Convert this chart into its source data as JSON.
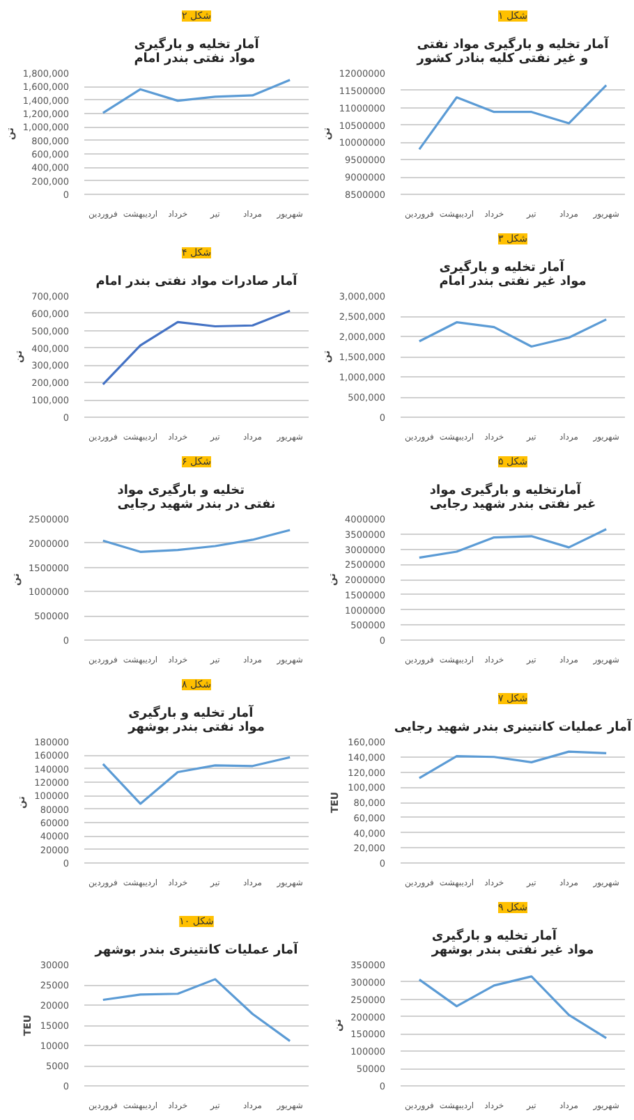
{
  "chart_data": [
    {
      "type": "line",
      "subtitle": "شکل ۱",
      "title": "آمار تخلیه و بارگیری مواد نفتی و غیر نفتی کلیه بنادر کشور",
      "ylabel": "تن",
      "categories": [
        "فروردین",
        "اردیبهشت",
        "خرداد",
        "تیر",
        "مرداد",
        "شهریور"
      ],
      "values": [
        9800000,
        11300000,
        10880000,
        10880000,
        10550000,
        11650000
      ],
      "color": "#5b9bd5",
      "ylim": [
        8500000,
        12000000
      ],
      "yticks": [
        8500000,
        9000000,
        9500000,
        10000000,
        10500000,
        11000000,
        11500000,
        12000000
      ],
      "grid": "y"
    },
    {
      "type": "line",
      "subtitle": "شکل ۲",
      "title": "آمار تخلیه و بارگیری مواد نفتی بندر امام",
      "ylabel": "تن",
      "categories": [
        "فروردین",
        "اردیبهشت",
        "خرداد",
        "تیر",
        "مرداد",
        "شهریور"
      ],
      "values": [
        1210000,
        1560000,
        1390000,
        1450000,
        1470000,
        1700000
      ],
      "color": "#5b9bd5",
      "ylim": [
        0,
        1800000
      ],
      "yticks": [
        0,
        {
          "value": 200000,
          "label": "200,000"
        },
        {
          "value": 400000,
          "label": "400,000"
        },
        {
          "value": 600000,
          "label": "600,000"
        },
        {
          "value": 800000,
          "label": "800,000"
        },
        {
          "value": 1000000,
          "label": "1,000,000"
        },
        {
          "value": 1200000,
          "label": "1,200,000"
        },
        {
          "value": 1400000,
          "label": "1,400,000"
        },
        {
          "value": 1600000,
          "label": "1,600,000"
        },
        {
          "value": 1800000,
          "label": "1,800,000"
        }
      ],
      "grid": "y"
    },
    {
      "type": "line",
      "subtitle": "شکل ۳",
      "title": "آمار تخلیه و بارگیری مواد غیر نفتی بندر امام",
      "ylabel": "تن",
      "categories": [
        "فروردین",
        "اردیبهشت",
        "خرداد",
        "تیر",
        "مرداد",
        "شهریور"
      ],
      "values": [
        1880000,
        2350000,
        2230000,
        1750000,
        1970000,
        2420000
      ],
      "color": "#5b9bd5",
      "ylim": [
        0,
        3000000
      ],
      "yticks": [
        0,
        {
          "value": 500000,
          "label": "500,000"
        },
        {
          "value": 1000000,
          "label": "1,000,000"
        },
        {
          "value": 1500000,
          "label": "1,500,000"
        },
        {
          "value": 2000000,
          "label": "2,000,000"
        },
        {
          "value": 2500000,
          "label": "2,500,000"
        },
        {
          "value": 3000000,
          "label": "3,000,000"
        }
      ],
      "grid": "y"
    },
    {
      "type": "line",
      "subtitle": "شکل ۴",
      "title": "آمار صادرات مواد نفتی بندر امام",
      "ylabel": "تن",
      "categories": [
        "فروردین",
        "اردیبهشت",
        "خرداد",
        "تیر",
        "مرداد",
        "شهریور"
      ],
      "values": [
        190000,
        415000,
        550000,
        525000,
        530000,
        615000
      ],
      "color": "#4472c4",
      "ylim": [
        0,
        700000
      ],
      "yticks": [
        0,
        {
          "value": 100000,
          "label": "100,000"
        },
        {
          "value": 200000,
          "label": "200,000"
        },
        {
          "value": 300000,
          "label": "300,000"
        },
        {
          "value": 400000,
          "label": "400,000"
        },
        {
          "value": 500000,
          "label": "500,000"
        },
        {
          "value": 600000,
          "label": "600,000"
        },
        {
          "value": 700000,
          "label": "700,000"
        }
      ],
      "grid": "y"
    },
    {
      "type": "line",
      "subtitle": "شکل ۵",
      "title": "آمارتخلیه و بارگیری مواد غیر نفتی بندر شهید رجایی",
      "ylabel": "تن",
      "categories": [
        "فروردین",
        "اردیبهشت",
        "خرداد",
        "تیر",
        "مرداد",
        "شهریور"
      ],
      "values": [
        2720000,
        2920000,
        3390000,
        3430000,
        3060000,
        3660000
      ],
      "color": "#5b9bd5",
      "ylim": [
        0,
        4000000
      ],
      "yticks": [
        0,
        500000,
        1000000,
        1500000,
        2000000,
        2500000,
        3000000,
        3500000,
        4000000
      ],
      "grid": "y"
    },
    {
      "type": "line",
      "subtitle": "شکل ۶",
      "title": "تخلیه و بارگیری مواد نفتی در بندر شهید رجایی",
      "ylabel": "تن",
      "categories": [
        "فروردین",
        "اردیبهشت",
        "خرداد",
        "تیر",
        "مرداد",
        "شهریور"
      ],
      "values": [
        2050000,
        1820000,
        1860000,
        1940000,
        2070000,
        2270000
      ],
      "color": "#5b9bd5",
      "ylim": [
        0,
        2500000
      ],
      "yticks": [
        0,
        500000,
        1000000,
        1500000,
        2000000,
        2500000
      ],
      "grid": "y"
    },
    {
      "type": "line",
      "subtitle": "شکل ۷",
      "title": "آمار عملیات کانتینری بندر شهید رجایی",
      "ylabel": "TEU",
      "categories": [
        "فروردین",
        "اردیبهشت",
        "خرداد",
        "تیر",
        "مرداد",
        "شهریور"
      ],
      "values": [
        112000,
        141000,
        140000,
        133000,
        147000,
        145000
      ],
      "color": "#5b9bd5",
      "ylim": [
        0,
        160000
      ],
      "yticks": [
        0,
        {
          "value": 20000,
          "label": "20,000"
        },
        {
          "value": 40000,
          "label": "40,000"
        },
        {
          "value": 60000,
          "label": "60,000"
        },
        {
          "value": 80000,
          "label": "80,000"
        },
        {
          "value": 100000,
          "label": "100,000"
        },
        {
          "value": 120000,
          "label": "120,000"
        },
        {
          "value": 140000,
          "label": "140,000"
        },
        {
          "value": 160000,
          "label": "160,000"
        }
      ],
      "grid": "y"
    },
    {
      "type": "line",
      "subtitle": "شکل ۸",
      "title": "آمار تخلیه و بارگیری مواد نفتی بندر بوشهر",
      "ylabel": "تن",
      "categories": [
        "فروردین",
        "اردیبهشت",
        "خرداد",
        "تیر",
        "مرداد",
        "شهریور"
      ],
      "values": [
        147000,
        88000,
        135000,
        145000,
        144000,
        157000
      ],
      "color": "#5b9bd5",
      "ylim": [
        0,
        180000
      ],
      "yticks": [
        0,
        20000,
        40000,
        60000,
        80000,
        100000,
        120000,
        140000,
        160000,
        180000
      ],
      "grid": "y"
    },
    {
      "type": "line",
      "subtitle": "شکل ۹",
      "title": "آمار تخلیه و بارگیری مواد غیر نفتی بندر بوشهر",
      "ylabel": "تن",
      "categories": [
        "فروردین",
        "اردیبهشت",
        "خرداد",
        "تیر",
        "مرداد",
        "شهریور"
      ],
      "values": [
        307000,
        230000,
        290000,
        316000,
        205000,
        138000
      ],
      "color": "#5b9bd5",
      "ylim": [
        0,
        350000
      ],
      "yticks": [
        0,
        50000,
        100000,
        150000,
        200000,
        250000,
        300000,
        350000
      ],
      "grid": "y"
    },
    {
      "type": "line",
      "subtitle": "شکل ۱۰",
      "title": "آمار عملیات کانتینری بندر بوشهر",
      "ylabel": "TEU",
      "categories": [
        "فروردین",
        "اردیبهشت",
        "خرداد",
        "تیر",
        "مرداد",
        "شهریور"
      ],
      "values": [
        21300,
        22600,
        22800,
        26400,
        17800,
        11100
      ],
      "color": "#5b9bd5",
      "ylim": [
        0,
        30000
      ],
      "yticks": [
        0,
        5000,
        10000,
        15000,
        20000,
        25000,
        30000
      ],
      "grid": "y"
    }
  ]
}
